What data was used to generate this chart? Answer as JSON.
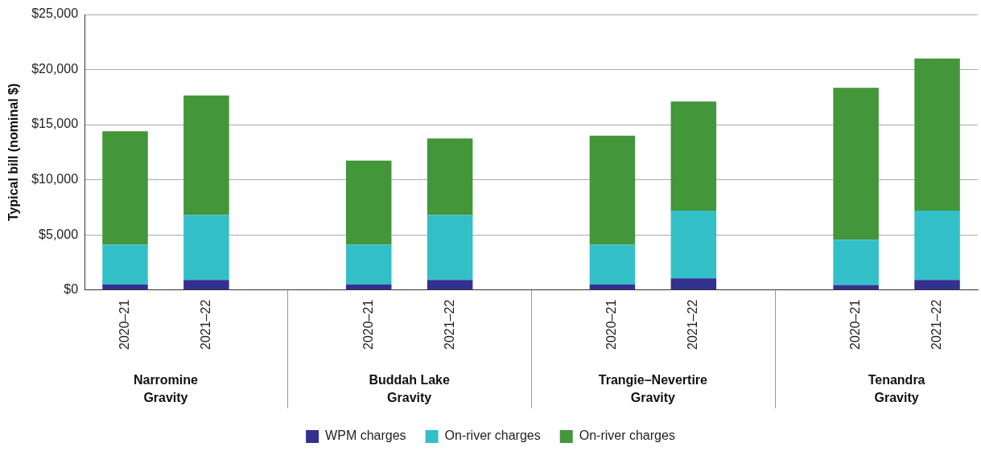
{
  "chart_data": {
    "type": "bar",
    "stacked": true,
    "ylabel": "Typical bill (nominal $)",
    "categories": [
      "2020–21",
      "2021–22",
      null,
      "2020–21",
      "2021–22",
      null,
      "2020–21",
      "2021–22",
      null,
      "2020–21",
      "2021–22"
    ],
    "series": [
      {
        "name": "WPM charges",
        "color": "#33318f",
        "values": [
          500,
          900,
          null,
          500,
          900,
          null,
          500,
          1050,
          null,
          450,
          900
        ]
      },
      {
        "name": "On-river charges",
        "color": "#33bfc8",
        "values": [
          3600,
          5900,
          null,
          3600,
          5900,
          null,
          3600,
          6150,
          null,
          4100,
          6300
        ]
      },
      {
        "name": "On-river charges",
        "color": "#43963a",
        "values": [
          10300,
          10850,
          null,
          7650,
          6950,
          null,
          9900,
          9900,
          null,
          13800,
          13800
        ]
      }
    ],
    "ylim": [
      0,
      25000
    ],
    "yticks": [
      {
        "value": 0,
        "label": "$0"
      },
      {
        "value": 5000,
        "label": "$5,000"
      },
      {
        "value": 10000,
        "label": "$10,000"
      },
      {
        "value": 15000,
        "label": "$15,000"
      },
      {
        "value": 20000,
        "label": "$20,000"
      },
      {
        "value": 25000,
        "label": "$25,000"
      }
    ],
    "grid": "y",
    "legend": "bottom",
    "annotations": [
      "Narromine\nGravity",
      "Buddah Lake\nGravity",
      "Trangie–Nevertire\nGravity",
      "Tenandra\nGravity"
    ]
  }
}
